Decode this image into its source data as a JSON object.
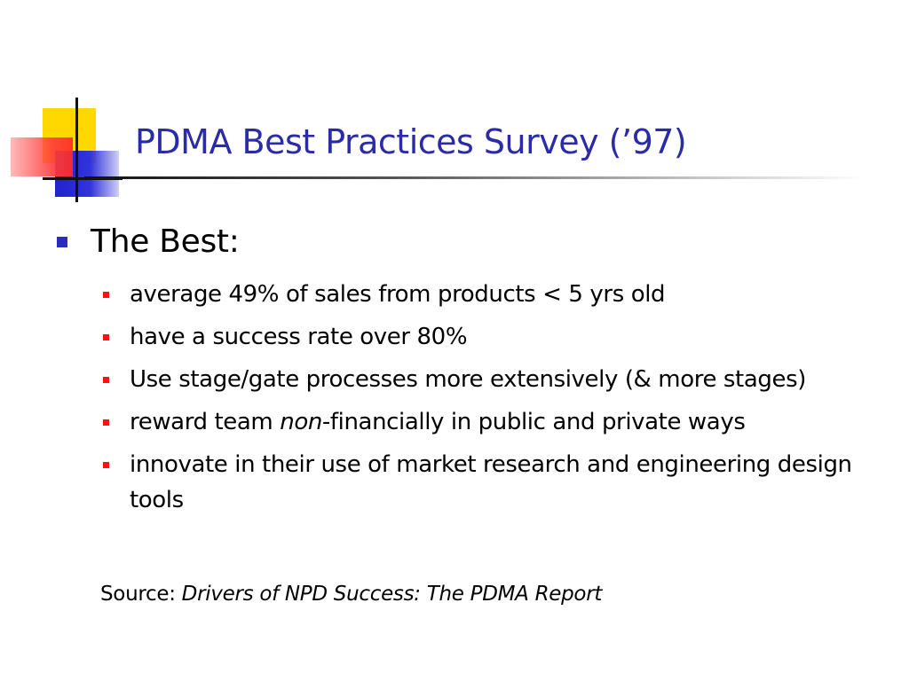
{
  "slide": {
    "title": "PDMA Best Practices Survey (’97)",
    "bullet_l1": "The Best:",
    "items": [
      "average 49% of sales from products < 5 yrs old",
      "have a success rate over 80%",
      "Use stage/gate processes more extensively (& more stages)",
      {
        "before": "reward team ",
        "emphasis": "non",
        "after": "-financially in public and private ways"
      },
      "innovate in their use of market research and engineering design tools"
    ],
    "source_label": "Source: ",
    "source_title": "Drivers of NPD Success: The PDMA Report"
  },
  "colors": {
    "title": "#2b2ba8",
    "level1_bullet": "#2b2bbf",
    "level2_bullet": "#ff1111",
    "deco_yellow": "#ffd800",
    "deco_blue": "#2222cc",
    "deco_red": "#ff3b3b"
  }
}
